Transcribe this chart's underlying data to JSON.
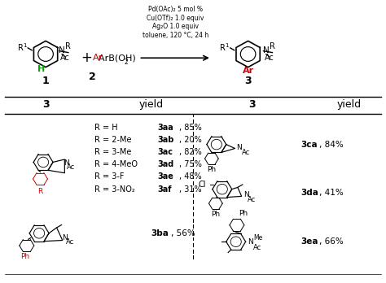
{
  "title": "",
  "bg_color": "#ffffff",
  "reaction_conditions": "Pd(OAc)₂ 5 mol %\nCu(OTf)₂ 1.0 equiv\nAg₂O 1.0 equiv\ntoluene, 120 °C, 24 h",
  "compound1_label": "1",
  "compound2_label": "2",
  "compound3_label": "3",
  "table_col1_header": "3",
  "table_col2_header": "yield",
  "table_col3_header": "3",
  "table_col4_header": "yield",
  "entries_left": [
    {
      "r": "R = H",
      "code": "3aa",
      "yield": "85%"
    },
    {
      "r": "R = 2-Me",
      "code": "3ab",
      "yield": "20%"
    },
    {
      "r": "R = 3-Me",
      "code": "3ac",
      "yield": "82%"
    },
    {
      "r": "R = 4-MeO",
      "code": "3ad",
      "yield": "75%"
    },
    {
      "r": "R = 3-F",
      "code": "3ae",
      "yield": "48%"
    },
    {
      "r": "R = 3-NO₂",
      "code": "3af",
      "yield": "31%"
    }
  ],
  "entry_ba": {
    "code": "3ba",
    "yield": "56%"
  },
  "entries_right": [
    {
      "code": "3ca",
      "yield": "84%"
    },
    {
      "code": "3da",
      "yield": "41%"
    },
    {
      "code": "3ea",
      "yield": "66%"
    }
  ]
}
